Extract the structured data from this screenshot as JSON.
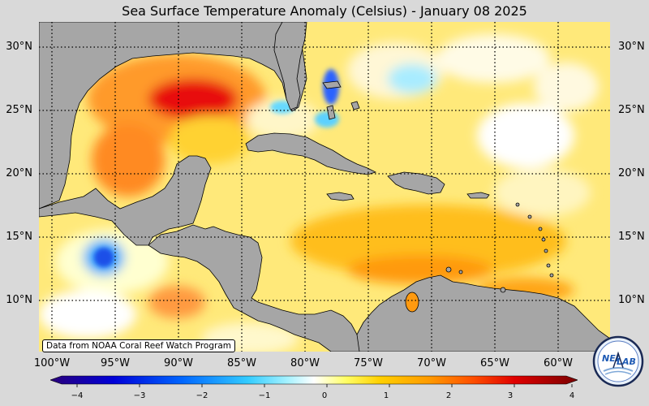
{
  "title": "Sea Surface Temperature Anomaly (Celsius) - January 08 2025",
  "credit": "Data from NOAA Coral Reef Watch Program",
  "lat_labels": [
    "30°N",
    "25°N",
    "20°N",
    "15°N",
    "10°N"
  ],
  "lon_labels": [
    "100°W",
    "95°W",
    "90°W",
    "85°W",
    "80°W",
    "75°W",
    "70°W",
    "65°W",
    "60°W"
  ],
  "colorbar": {
    "ticks": [
      "−4",
      "−3",
      "−2",
      "−1",
      "0",
      "1",
      "2",
      "3",
      "4"
    ],
    "range": [
      -4,
      4
    ],
    "colors": [
      "#2a007a",
      "#0000d8",
      "#0066ff",
      "#33ccff",
      "#a6f2ff",
      "#ffffff",
      "#ffff66",
      "#ffd000",
      "#ff9900",
      "#ff5000",
      "#e00000",
      "#7a0000"
    ]
  },
  "logo": {
    "text_top": "NEI",
    "text_right": "LAB"
  },
  "colors": {
    "land": "#a6a6a6",
    "background": "#d9d9d9",
    "sea_base": "#ffe680"
  }
}
